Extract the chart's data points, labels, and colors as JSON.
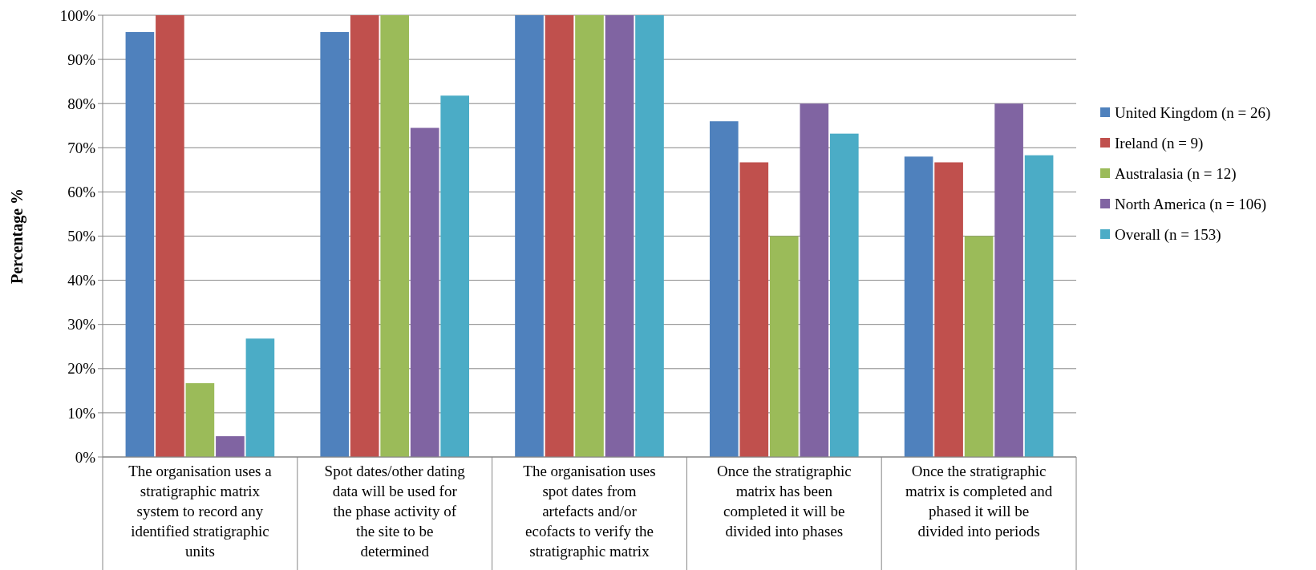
{
  "chart_data": {
    "type": "bar",
    "ylabel": "Percentage %",
    "categories": [
      "The organisation uses a stratigraphic matrix system to record any identified stratigraphic units",
      "Spot dates/other dating data will be used for the phase activity of the site to be determined",
      "The organisation uses spot dates from artefacts and/or ecofacts to verify the stratigraphic matrix",
      "Once the stratigraphic matrix has been completed it will be divided into phases",
      "Once the stratigraphic matrix is completed and phased it will be divided into periods"
    ],
    "series": [
      {
        "name": "United Kingdom (n = 26)",
        "color": "#4f81bd",
        "values": [
          96.2,
          96.2,
          100,
          76,
          68
        ]
      },
      {
        "name": "Ireland (n = 9)",
        "color": "#c0504d",
        "values": [
          100,
          100,
          100,
          66.7,
          66.7
        ]
      },
      {
        "name": "Australasia (n = 12)",
        "color": "#9bbb59",
        "values": [
          16.7,
          100,
          100,
          50,
          50
        ]
      },
      {
        "name": "North America (n = 106)",
        "color": "#8064a2",
        "values": [
          4.7,
          74.5,
          100,
          80,
          80
        ]
      },
      {
        "name": "Overall (n = 153)",
        "color": "#4bacc6",
        "values": [
          26.8,
          81.8,
          100,
          73.2,
          68.3
        ]
      }
    ],
    "ylim": [
      0,
      100
    ],
    "yticks": [
      {
        "value": 0,
        "label": "0%"
      },
      {
        "value": 10,
        "label": "10%"
      },
      {
        "value": 20,
        "label": "20%"
      },
      {
        "value": 30,
        "label": "30%"
      },
      {
        "value": 40,
        "label": "40%"
      },
      {
        "value": 50,
        "label": "50%"
      },
      {
        "value": 60,
        "label": "60%"
      },
      {
        "value": 70,
        "label": "70%"
      },
      {
        "value": 80,
        "label": "80%"
      },
      {
        "value": 90,
        "label": "90%"
      },
      {
        "value": 100,
        "label": "100%"
      }
    ],
    "grid": "y",
    "legend": "right"
  }
}
